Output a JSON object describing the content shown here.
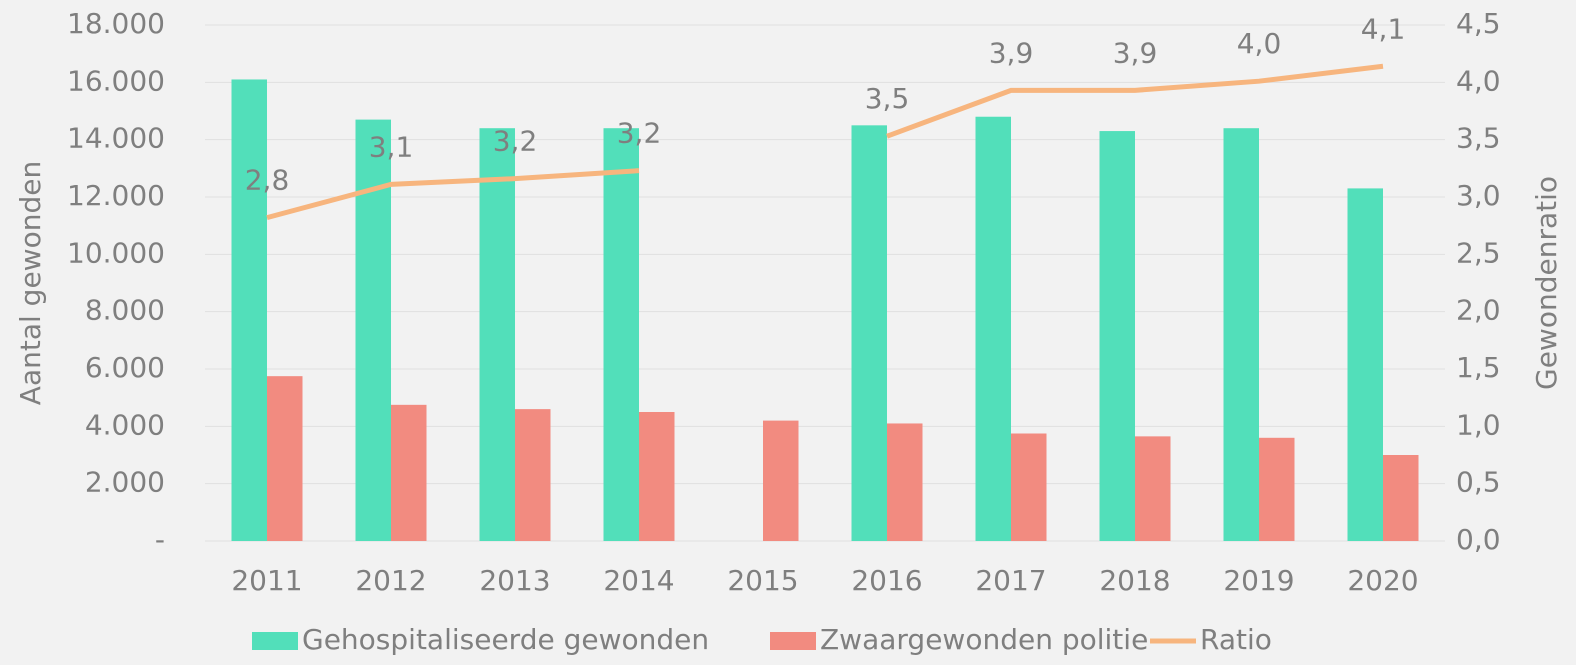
{
  "chart_data": {
    "type": "bar",
    "categories": [
      "2011",
      "2012",
      "2013",
      "2014",
      "2015",
      "2016",
      "2017",
      "2018",
      "2019",
      "2020"
    ],
    "y_label": "Aantal gewonden",
    "y2_label": "Gewondenratio",
    "series": [
      {
        "name": "Gehospitaliseerde gewonden",
        "color": "#52dfba",
        "values": [
          16100,
          14700,
          14400,
          14400,
          null,
          14500,
          14800,
          14300,
          14400,
          12300
        ]
      },
      {
        "name": "Zwaargewonden politie",
        "color": "#f28b80",
        "values": [
          5750,
          4750,
          4600,
          4500,
          4200,
          4100,
          3750,
          3650,
          3600,
          3000
        ]
      },
      {
        "name": "Ratio",
        "color": "#f7b57e",
        "type": "line",
        "axis": "y2",
        "values": [
          2.82,
          3.11,
          3.16,
          3.23,
          null,
          3.53,
          3.93,
          3.93,
          4.01,
          4.14
        ],
        "value_labels": [
          "2,8",
          "3,1",
          "3,2",
          "3,2",
          null,
          "3,5",
          "3,9",
          "3,9",
          "4,0",
          "4,1"
        ]
      }
    ],
    "ylim": [
      0,
      18000
    ],
    "yticks": [
      {
        "value": 0,
        "label": "-"
      },
      {
        "value": 2000,
        "label": "2.000"
      },
      {
        "value": 4000,
        "label": "4.000"
      },
      {
        "value": 6000,
        "label": "6.000"
      },
      {
        "value": 8000,
        "label": "8.000"
      },
      {
        "value": 10000,
        "label": "10.000"
      },
      {
        "value": 12000,
        "label": "12.000"
      },
      {
        "value": 14000,
        "label": "14.000"
      },
      {
        "value": 16000,
        "label": "16.000"
      },
      {
        "value": 18000,
        "label": "18.000"
      }
    ],
    "y2lim": [
      0,
      4.5
    ],
    "y2ticks": [
      {
        "value": 0,
        "label": "0,0"
      },
      {
        "value": 0.5,
        "label": "0,5"
      },
      {
        "value": 1,
        "label": "1,0"
      },
      {
        "value": 1.5,
        "label": "1,5"
      },
      {
        "value": 2,
        "label": "2,0"
      },
      {
        "value": 2.5,
        "label": "2,5"
      },
      {
        "value": 3,
        "label": "3,0"
      },
      {
        "value": 3.5,
        "label": "3,5"
      },
      {
        "value": 4,
        "label": "4,0"
      },
      {
        "value": 4.5,
        "label": "4,5"
      }
    ],
    "grid": true,
    "legend": "bottom"
  }
}
